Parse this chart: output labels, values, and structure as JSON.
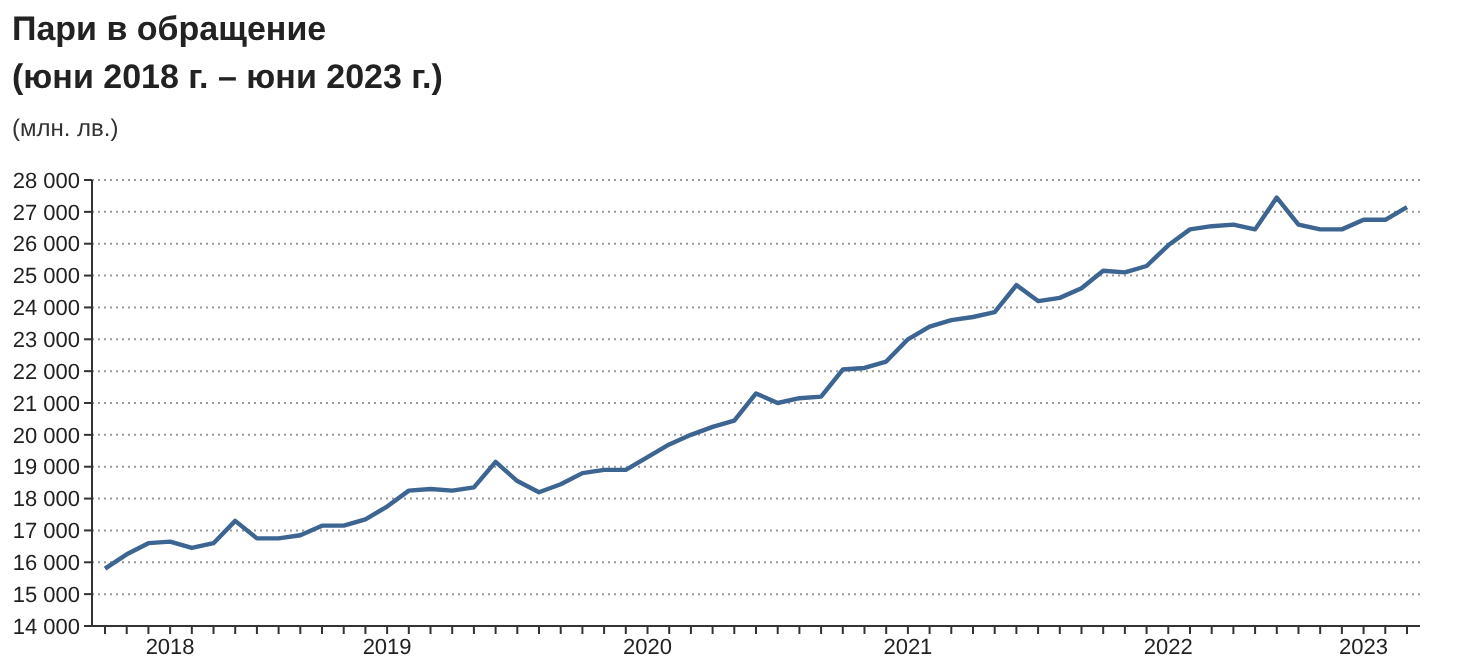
{
  "chart_data": {
    "type": "line",
    "title": "Пари в обращение",
    "subtitle": "(юни 2018 г. – юни 2023 г.)",
    "ylabel": "(млн. лв.)",
    "categories": [
      null,
      null,
      null,
      "2018",
      null,
      null,
      null,
      null,
      null,
      null,
      null,
      null,
      null,
      "2019",
      null,
      null,
      null,
      null,
      null,
      null,
      null,
      null,
      null,
      null,
      null,
      "2020",
      null,
      null,
      null,
      null,
      null,
      null,
      null,
      null,
      null,
      null,
      null,
      "2021",
      null,
      null,
      null,
      null,
      null,
      null,
      null,
      null,
      null,
      null,
      null,
      "2022",
      null,
      null,
      null,
      null,
      null,
      null,
      null,
      null,
      "2023",
      null,
      null
    ],
    "series": [
      {
        "color": "#3d6591",
        "values": [
          15800,
          16250,
          16600,
          16650,
          16450,
          16600,
          17300,
          16750,
          16750,
          16850,
          17150,
          17150,
          17350,
          17750,
          18250,
          18300,
          18250,
          18350,
          19150,
          18550,
          18200,
          18450,
          18800,
          18900,
          18900,
          19300,
          19700,
          20000,
          20250,
          20450,
          21300,
          21000,
          21150,
          21200,
          22050,
          22100,
          22300,
          23000,
          23400,
          23600,
          23700,
          23850,
          24700,
          24200,
          24300,
          24600,
          25150,
          25100,
          25300,
          25950,
          26450,
          26550,
          26600,
          26450,
          27450,
          26600,
          26450,
          26450,
          26750,
          26750,
          27150
        ]
      }
    ],
    "ylim": [
      14000,
      28000
    ],
    "yticks": [
      {
        "value": 14000,
        "label": "14 000"
      },
      {
        "value": 15000,
        "label": "15 000"
      },
      {
        "value": 16000,
        "label": "16 000"
      },
      {
        "value": 17000,
        "label": "17 000"
      },
      {
        "value": 18000,
        "label": "18 000"
      },
      {
        "value": 19000,
        "label": "19 000"
      },
      {
        "value": 20000,
        "label": "20 000"
      },
      {
        "value": 21000,
        "label": "21 000"
      },
      {
        "value": 22000,
        "label": "22 000"
      },
      {
        "value": 23000,
        "label": "23 000"
      },
      {
        "value": 24000,
        "label": "24 000"
      },
      {
        "value": 25000,
        "label": "25 000"
      },
      {
        "value": 26000,
        "label": "26 000"
      },
      {
        "value": 27000,
        "label": "27 000"
      },
      {
        "value": 28000,
        "label": "28 000"
      }
    ],
    "grid": "y",
    "marker": "none",
    "line_style": "solid"
  }
}
